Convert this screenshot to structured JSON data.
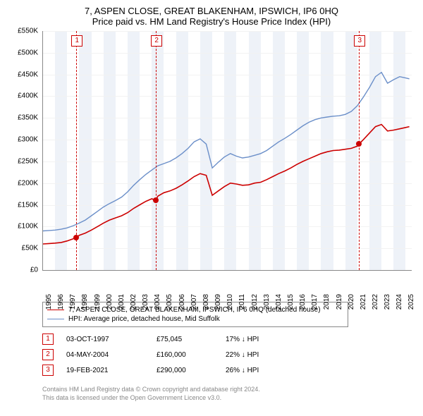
{
  "title": "7, ASPEN CLOSE, GREAT BLAKENHAM, IPSWICH, IP6 0HQ",
  "subtitle": "Price paid vs. HM Land Registry's House Price Index (HPI)",
  "chart": {
    "type": "line",
    "background_color": "#ffffff",
    "band_color": "#eef2f8",
    "grid_color": "#f2f2f2",
    "axis_color": "#888888",
    "label_fontsize": 10,
    "title_fontsize": 13,
    "ylim": [
      0,
      550000
    ],
    "ytick_step": 50000,
    "yticks": [
      "£0",
      "£50K",
      "£100K",
      "£150K",
      "£200K",
      "£250K",
      "£300K",
      "£350K",
      "£400K",
      "£450K",
      "£500K",
      "£550K"
    ],
    "xlim": [
      1995,
      2025.5
    ],
    "xticks": [
      1995,
      1996,
      1997,
      1998,
      1999,
      2000,
      2001,
      2002,
      2003,
      2004,
      2005,
      2006,
      2007,
      2008,
      2009,
      2010,
      2011,
      2012,
      2013,
      2014,
      2015,
      2016,
      2017,
      2018,
      2019,
      2020,
      2021,
      2022,
      2023,
      2024,
      2025
    ],
    "series": [
      {
        "name": "red",
        "label": "7, ASPEN CLOSE, GREAT BLAKENHAM, IPSWICH, IP6 0HQ (detached house)",
        "color": "#cc0000",
        "line_width": 1.6,
        "data": [
          [
            1995.0,
            60000
          ],
          [
            1995.5,
            61000
          ],
          [
            1996.0,
            62000
          ],
          [
            1996.5,
            63500
          ],
          [
            1997.0,
            67000
          ],
          [
            1997.5,
            72000
          ],
          [
            1997.76,
            75045
          ],
          [
            1998.0,
            80000
          ],
          [
            1998.5,
            85000
          ],
          [
            1999.0,
            92000
          ],
          [
            1999.5,
            100000
          ],
          [
            2000.0,
            108000
          ],
          [
            2000.5,
            115000
          ],
          [
            2001.0,
            120000
          ],
          [
            2001.5,
            125000
          ],
          [
            2002.0,
            132000
          ],
          [
            2002.5,
            142000
          ],
          [
            2003.0,
            150000
          ],
          [
            2003.5,
            158000
          ],
          [
            2004.0,
            164000
          ],
          [
            2004.34,
            160000
          ],
          [
            2004.5,
            170000
          ],
          [
            2005.0,
            178000
          ],
          [
            2005.5,
            182000
          ],
          [
            2006.0,
            188000
          ],
          [
            2006.5,
            196000
          ],
          [
            2007.0,
            205000
          ],
          [
            2007.5,
            215000
          ],
          [
            2008.0,
            222000
          ],
          [
            2008.5,
            218000
          ],
          [
            2009.0,
            172000
          ],
          [
            2009.5,
            182000
          ],
          [
            2010.0,
            192000
          ],
          [
            2010.5,
            200000
          ],
          [
            2011.0,
            198000
          ],
          [
            2011.5,
            195000
          ],
          [
            2012.0,
            196000
          ],
          [
            2012.5,
            200000
          ],
          [
            2013.0,
            202000
          ],
          [
            2013.5,
            208000
          ],
          [
            2014.0,
            215000
          ],
          [
            2014.5,
            222000
          ],
          [
            2015.0,
            228000
          ],
          [
            2015.5,
            235000
          ],
          [
            2016.0,
            243000
          ],
          [
            2016.5,
            250000
          ],
          [
            2017.0,
            256000
          ],
          [
            2017.5,
            262000
          ],
          [
            2018.0,
            268000
          ],
          [
            2018.5,
            272000
          ],
          [
            2019.0,
            275000
          ],
          [
            2019.5,
            276000
          ],
          [
            2020.0,
            278000
          ],
          [
            2020.5,
            280000
          ],
          [
            2021.0,
            285000
          ],
          [
            2021.14,
            290000
          ],
          [
            2021.5,
            300000
          ],
          [
            2022.0,
            315000
          ],
          [
            2022.5,
            330000
          ],
          [
            2023.0,
            335000
          ],
          [
            2023.5,
            320000
          ],
          [
            2024.0,
            322000
          ],
          [
            2024.5,
            325000
          ],
          [
            2025.0,
            328000
          ],
          [
            2025.3,
            330000
          ]
        ]
      },
      {
        "name": "blue",
        "label": "HPI: Average price, detached house, Mid Suffolk",
        "color": "#6b8fc9",
        "line_width": 1.4,
        "data": [
          [
            1995.0,
            90000
          ],
          [
            1995.5,
            91000
          ],
          [
            1996.0,
            92000
          ],
          [
            1996.5,
            94000
          ],
          [
            1997.0,
            97000
          ],
          [
            1997.5,
            102000
          ],
          [
            1998.0,
            108000
          ],
          [
            1998.5,
            115000
          ],
          [
            1999.0,
            125000
          ],
          [
            1999.5,
            135000
          ],
          [
            2000.0,
            145000
          ],
          [
            2000.5,
            153000
          ],
          [
            2001.0,
            160000
          ],
          [
            2001.5,
            168000
          ],
          [
            2002.0,
            180000
          ],
          [
            2002.5,
            195000
          ],
          [
            2003.0,
            208000
          ],
          [
            2003.5,
            220000
          ],
          [
            2004.0,
            230000
          ],
          [
            2004.5,
            240000
          ],
          [
            2005.0,
            245000
          ],
          [
            2005.5,
            250000
          ],
          [
            2006.0,
            258000
          ],
          [
            2006.5,
            268000
          ],
          [
            2007.0,
            280000
          ],
          [
            2007.5,
            295000
          ],
          [
            2008.0,
            302000
          ],
          [
            2008.5,
            290000
          ],
          [
            2009.0,
            235000
          ],
          [
            2009.5,
            248000
          ],
          [
            2010.0,
            260000
          ],
          [
            2010.5,
            268000
          ],
          [
            2011.0,
            262000
          ],
          [
            2011.5,
            258000
          ],
          [
            2012.0,
            260000
          ],
          [
            2012.5,
            264000
          ],
          [
            2013.0,
            268000
          ],
          [
            2013.5,
            275000
          ],
          [
            2014.0,
            285000
          ],
          [
            2014.5,
            295000
          ],
          [
            2015.0,
            303000
          ],
          [
            2015.5,
            312000
          ],
          [
            2016.0,
            322000
          ],
          [
            2016.5,
            332000
          ],
          [
            2017.0,
            340000
          ],
          [
            2017.5,
            346000
          ],
          [
            2018.0,
            350000
          ],
          [
            2018.5,
            352000
          ],
          [
            2019.0,
            354000
          ],
          [
            2019.5,
            355000
          ],
          [
            2020.0,
            358000
          ],
          [
            2020.5,
            365000
          ],
          [
            2021.0,
            378000
          ],
          [
            2021.5,
            398000
          ],
          [
            2022.0,
            420000
          ],
          [
            2022.5,
            445000
          ],
          [
            2023.0,
            455000
          ],
          [
            2023.5,
            430000
          ],
          [
            2024.0,
            438000
          ],
          [
            2024.5,
            445000
          ],
          [
            2025.0,
            442000
          ],
          [
            2025.3,
            440000
          ]
        ]
      }
    ],
    "markers": [
      {
        "n": "1",
        "year": 1997.76,
        "price": 75045
      },
      {
        "n": "2",
        "year": 2004.34,
        "price": 160000
      },
      {
        "n": "3",
        "year": 2021.14,
        "price": 290000
      }
    ]
  },
  "legend": [
    {
      "color": "#cc0000",
      "label": "7, ASPEN CLOSE, GREAT BLAKENHAM, IPSWICH, IP6 0HQ (detached house)"
    },
    {
      "color": "#6b8fc9",
      "label": "HPI: Average price, detached house, Mid Suffolk"
    }
  ],
  "sales": [
    {
      "n": "1",
      "date": "03-OCT-1997",
      "price": "£75,045",
      "delta": "17% ↓ HPI"
    },
    {
      "n": "2",
      "date": "04-MAY-2004",
      "price": "£160,000",
      "delta": "22% ↓ HPI"
    },
    {
      "n": "3",
      "date": "19-FEB-2021",
      "price": "£290,000",
      "delta": "26% ↓ HPI"
    }
  ],
  "footer1": "Contains HM Land Registry data © Crown copyright and database right 2024.",
  "footer2": "This data is licensed under the Open Government Licence v3.0."
}
